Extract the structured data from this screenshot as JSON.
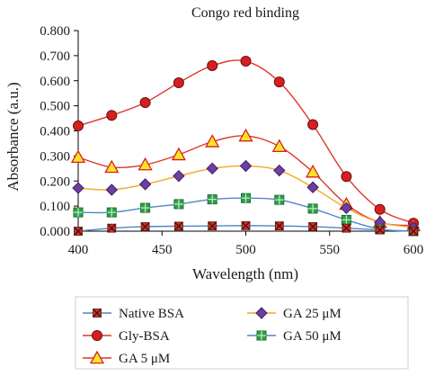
{
  "chart_data": {
    "type": "line",
    "title": "Congo red binding",
    "xlabel": "Wavelength (nm)",
    "ylabel": "Absorbance (a.u.)",
    "xlim": [
      400,
      600
    ],
    "ylim": [
      0,
      0.8
    ],
    "x_ticks": [
      "400",
      "450",
      "500",
      "550",
      "600"
    ],
    "y_ticks": [
      "0.000",
      "0.100",
      "0.200",
      "0.300",
      "0.400",
      "0.500",
      "0.600",
      "0.700",
      "0.800"
    ],
    "x": [
      400,
      420,
      440,
      460,
      480,
      500,
      520,
      540,
      560,
      580,
      600
    ],
    "grid": false,
    "legend_position": "bottom",
    "series": [
      {
        "name": "Native BSA",
        "color": "#4f86c6",
        "marker": "x-square",
        "marker_color": "#c0392b",
        "values": [
          0.0,
          0.012,
          0.018,
          0.02,
          0.021,
          0.022,
          0.021,
          0.018,
          0.012,
          0.005,
          0.0
        ]
      },
      {
        "name": "Gly-BSA",
        "color": "#e0352b",
        "marker": "circle",
        "marker_color": "#d71f1f",
        "values": [
          0.42,
          0.462,
          0.513,
          0.592,
          0.66,
          0.678,
          0.595,
          0.425,
          0.218,
          0.087,
          0.032
        ]
      },
      {
        "name": "GA 5 μM",
        "color": "#e0352b",
        "marker": "triangle",
        "marker_color": "#ffe52a",
        "values": [
          0.295,
          0.255,
          0.265,
          0.305,
          0.357,
          0.38,
          0.338,
          0.236,
          0.107,
          0.035,
          0.022
        ]
      },
      {
        "name": "GA 25 μM",
        "color": "#f5a623",
        "marker": "diamond",
        "marker_color": "#6d3fa0",
        "values": [
          0.172,
          0.165,
          0.187,
          0.22,
          0.25,
          0.26,
          0.242,
          0.175,
          0.092,
          0.035,
          0.015
        ]
      },
      {
        "name": "GA 50 μM",
        "color": "#4f86c6",
        "marker": "square-plus",
        "marker_color": "#2fa14a",
        "values": [
          0.075,
          0.075,
          0.093,
          0.108,
          0.127,
          0.132,
          0.125,
          0.09,
          0.045,
          0.008,
          0.0
        ]
      }
    ]
  }
}
